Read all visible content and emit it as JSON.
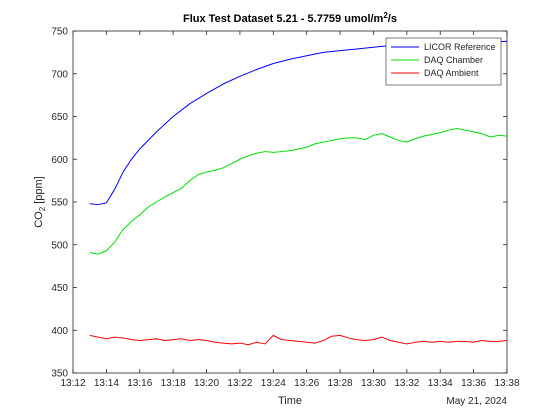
{
  "chart_data": {
    "type": "line",
    "title": "Flux Test Dataset 5.21 - 5.7759 umol/m",
    "title_sup": "2",
    "title_tail": "/s",
    "xlabel": "Time",
    "ylabel_pre": "CO",
    "ylabel_sub": "2",
    "ylabel_post": " [ppm]",
    "date_label": "May 21, 2024",
    "xlim": [
      "13:12",
      "13:38"
    ],
    "ylim": [
      350,
      750
    ],
    "x_ticks": [
      "13:12",
      "13:14",
      "13:16",
      "13:18",
      "13:20",
      "13:22",
      "13:24",
      "13:26",
      "13:28",
      "13:30",
      "13:32",
      "13:34",
      "13:36",
      "13:38"
    ],
    "y_ticks": [
      350,
      400,
      450,
      500,
      550,
      600,
      650,
      700,
      750
    ],
    "legend_position": "top-right",
    "grid": false,
    "series": [
      {
        "name": "LICOR Reference",
        "color": "#0000ff",
        "x": [
          "13:13",
          "13:13.5",
          "13:14",
          "13:14.5",
          "13:15",
          "13:15.5",
          "13:16",
          "13:17",
          "13:18",
          "13:19",
          "13:20",
          "13:21",
          "13:22",
          "13:23",
          "13:24",
          "13:25",
          "13:26",
          "13:27",
          "13:28",
          "13:29",
          "13:30",
          "13:31",
          "13:32",
          "13:33",
          "13:34",
          "13:35",
          "13:36",
          "13:37",
          "13:38"
        ],
        "values": [
          548,
          547,
          549,
          565,
          585,
          600,
          612,
          632,
          650,
          665,
          677,
          688,
          697,
          705,
          712,
          717,
          721,
          725,
          727,
          729,
          731,
          733,
          734,
          735,
          736,
          736,
          737,
          737,
          738
        ]
      },
      {
        "name": "DAQ Chamber",
        "color": "#00dd00",
        "x": [
          "13:13",
          "13:13.5",
          "13:14",
          "13:14.5",
          "13:15",
          "13:15.5",
          "13:16",
          "13:16.5",
          "13:17",
          "13:17.5",
          "13:18",
          "13:18.5",
          "13:19",
          "13:19.5",
          "13:20",
          "13:20.5",
          "13:21",
          "13:21.5",
          "13:22",
          "13:22.5",
          "13:23",
          "13:23.5",
          "13:24",
          "13:24.5",
          "13:25",
          "13:25.5",
          "13:26",
          "13:26.5",
          "13:27",
          "13:27.5",
          "13:28",
          "13:28.5",
          "13:29",
          "13:29.5",
          "13:30",
          "13:30.5",
          "13:31",
          "13:31.5",
          "13:32",
          "13:32.5",
          "13:33",
          "13:33.5",
          "13:34",
          "13:34.5",
          "13:35",
          "13:35.5",
          "13:36",
          "13:36.5",
          "13:37",
          "13:37.5",
          "13:38"
        ],
        "values": [
          491,
          489,
          493,
          503,
          518,
          527,
          535,
          544,
          550,
          556,
          561,
          566,
          575,
          582,
          585,
          587,
          590,
          595,
          600,
          604,
          607,
          609,
          608,
          609,
          610,
          612,
          614,
          618,
          620,
          622,
          624,
          625,
          625,
          623,
          628,
          630,
          626,
          622,
          620,
          624,
          627,
          629,
          631,
          634,
          636,
          634,
          632,
          630,
          626,
          628,
          627
        ]
      },
      {
        "name": "DAQ Ambient",
        "color": "#ff0000",
        "x": [
          "13:13",
          "13:13.5",
          "13:14",
          "13:14.5",
          "13:15",
          "13:15.5",
          "13:16",
          "13:16.5",
          "13:17",
          "13:17.5",
          "13:18",
          "13:18.5",
          "13:19",
          "13:19.5",
          "13:20",
          "13:20.5",
          "13:21",
          "13:21.5",
          "13:22",
          "13:22.5",
          "13:23",
          "13:23.5",
          "13:24",
          "13:24.5",
          "13:25",
          "13:25.5",
          "13:26",
          "13:26.5",
          "13:27",
          "13:27.5",
          "13:28",
          "13:28.5",
          "13:29",
          "13:29.5",
          "13:30",
          "13:30.5",
          "13:31",
          "13:31.5",
          "13:32",
          "13:32.5",
          "13:33",
          "13:33.5",
          "13:34",
          "13:34.5",
          "13:35",
          "13:35.5",
          "13:36",
          "13:36.5",
          "13:37",
          "13:37.5",
          "13:38"
        ],
        "values": [
          394,
          392,
          390,
          392,
          391,
          389,
          388,
          389,
          390,
          388,
          389,
          390,
          388,
          389,
          388,
          386,
          385,
          384,
          385,
          383,
          386,
          384,
          394,
          389,
          388,
          387,
          386,
          385,
          388,
          393,
          394,
          391,
          389,
          388,
          389,
          392,
          388,
          386,
          384,
          386,
          387,
          386,
          387,
          386,
          387,
          387,
          386,
          388,
          387,
          387,
          388
        ]
      }
    ]
  }
}
